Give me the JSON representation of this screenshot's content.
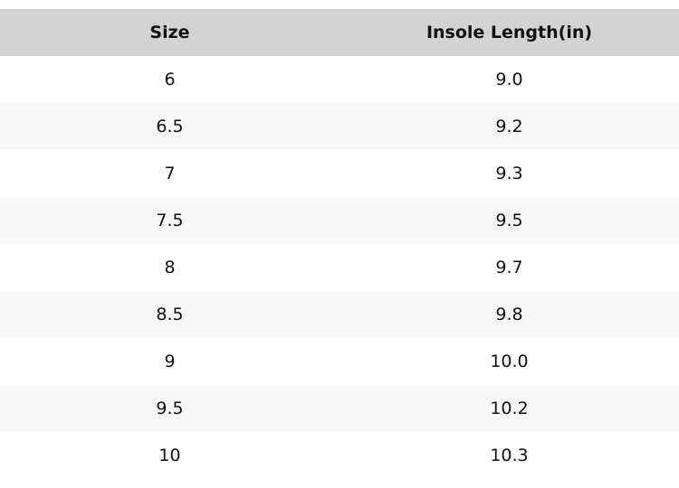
{
  "table": {
    "headers": [
      "Size",
      "Insole Length(in)"
    ],
    "rows": [
      [
        "6",
        "9.0"
      ],
      [
        "6.5",
        "9.2"
      ],
      [
        "7",
        "9.3"
      ],
      [
        "7.5",
        "9.5"
      ],
      [
        "8",
        "9.7"
      ],
      [
        "8.5",
        "9.8"
      ],
      [
        "9",
        "10.0"
      ],
      [
        "9.5",
        "10.2"
      ],
      [
        "10",
        "10.3"
      ]
    ]
  },
  "colors": {
    "header_bg": "#d3d3d3",
    "alt_row_bg": "#f8f8f8"
  }
}
